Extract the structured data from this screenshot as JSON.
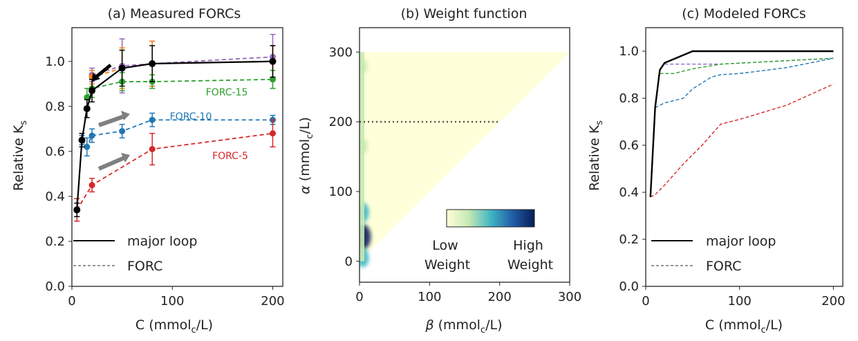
{
  "chart_data": [
    {
      "type": "line",
      "title": "(a) Measured FORCs",
      "xlabel": "C (mmol$_c$/L)",
      "ylabel": "Relative K$_s$",
      "xlim": [
        0,
        210
      ],
      "ylim": [
        0.0,
        1.15
      ],
      "xticks": [
        0,
        100,
        200
      ],
      "yticks": [
        0.0,
        0.2,
        0.4,
        0.6,
        0.8,
        1.0
      ],
      "grid": false,
      "legend_position": "lower-left",
      "series": [
        {
          "name": "major loop",
          "style": "solid",
          "color": "#000000",
          "marker": "circle",
          "x": [
            5,
            10,
            15,
            20,
            50,
            80,
            200
          ],
          "y": [
            0.34,
            0.65,
            0.79,
            0.87,
            0.97,
            0.99,
            1.0
          ],
          "err": [
            0.03,
            0.03,
            0.04,
            0.05,
            0.08,
            0.08,
            0.07
          ]
        },
        {
          "name": "",
          "style": "dashed",
          "color": "#9467bd",
          "marker": "circle",
          "x": [
            20,
            50,
            80,
            200
          ],
          "y": [
            0.94,
            0.98,
            0.99,
            1.02
          ],
          "err": [
            0.03,
            0.12,
            0.1,
            0.1
          ]
        },
        {
          "name": "",
          "style": "dashed",
          "color": "#ff7f0e",
          "marker": "circle",
          "x": [
            20,
            50,
            80,
            200
          ],
          "y": [
            0.93,
            0.97,
            0.99,
            1.0
          ],
          "err": [
            0.03,
            0.09,
            0.1,
            0.07
          ]
        },
        {
          "name": "FORC-15",
          "style": "dashed",
          "color": "#2ca02c",
          "marker": "circle",
          "x": [
            15,
            20,
            50,
            80,
            200
          ],
          "y": [
            0.84,
            0.88,
            0.91,
            0.91,
            0.92
          ],
          "err": [
            0.04,
            0.04,
            0.04,
            0.03,
            0.04
          ]
        },
        {
          "name": "FORC-10",
          "style": "dashed",
          "color": "#1f77b4",
          "marker": "circle",
          "x": [
            10,
            15,
            20,
            50,
            80,
            200
          ],
          "y": [
            0.65,
            0.62,
            0.67,
            0.69,
            0.74,
            0.74
          ],
          "err": [
            0.02,
            0.04,
            0.03,
            0.03,
            0.03,
            0.02
          ]
        },
        {
          "name": "FORC-5",
          "style": "dashed",
          "color": "#d62728",
          "marker": "circle",
          "x": [
            5,
            20,
            80,
            200
          ],
          "y": [
            0.34,
            0.45,
            0.61,
            0.68
          ],
          "err": [
            0.05,
            0.03,
            0.07,
            0.06
          ]
        }
      ],
      "legend": [
        {
          "label": "major loop",
          "style": "solid"
        },
        {
          "label": "FORC",
          "style": "dashed"
        }
      ],
      "annotations": [
        "FORC-15",
        "FORC-10",
        "FORC-5"
      ]
    },
    {
      "type": "heatmap",
      "title": "(b) Weight function",
      "xlabel": "β (mmol$_c$/L)",
      "ylabel": "α (mmol$_c$/L)",
      "xlim": [
        0,
        300
      ],
      "ylim": [
        -30,
        335
      ],
      "xticks": [
        0,
        100,
        200,
        300
      ],
      "yticks": [
        0,
        100,
        200,
        300
      ],
      "domain": "triangle: 0 ≤ β ≤ α ≤ 300",
      "dotted_line": {
        "alpha": 200,
        "beta_range": [
          0,
          200
        ]
      },
      "colormap": [
        "#ffffd9",
        "#c7e9b4",
        "#41b6c4",
        "#225ea8",
        "#081d58"
      ],
      "colorbar": {
        "low_label": "Low\nWeight",
        "high_label": "High\nWeight"
      },
      "hotspots": [
        {
          "beta": 3,
          "alpha": 35,
          "level": 1.0
        },
        {
          "beta": 3,
          "alpha": 70,
          "level": 0.6
        },
        {
          "beta": 3,
          "alpha": 5,
          "level": 0.55
        },
        {
          "beta": 3,
          "alpha": 165,
          "level": 0.3
        },
        {
          "beta": 3,
          "alpha": 280,
          "level": 0.25
        }
      ]
    },
    {
      "type": "line",
      "title": "(c) Modeled FORCs",
      "xlabel": "C (mmol$_c$/L)",
      "ylabel": "Relative K$_s$",
      "xlim": [
        0,
        210
      ],
      "ylim": [
        0.0,
        1.1
      ],
      "xticks": [
        0,
        100,
        200
      ],
      "yticks": [
        0.0,
        0.2,
        0.4,
        0.6,
        0.8,
        1.0
      ],
      "grid": false,
      "legend_position": "lower-left",
      "series": [
        {
          "name": "major loop",
          "style": "solid",
          "color": "#000000",
          "x": [
            5,
            10,
            15,
            20,
            50,
            80,
            200
          ],
          "y": [
            0.38,
            0.76,
            0.92,
            0.95,
            1.0,
            1.0,
            1.0
          ]
        },
        {
          "name": "",
          "style": "dashed",
          "color": "#ff7f0e",
          "x": [
            50,
            200
          ],
          "y": [
            1.0,
            1.0
          ]
        },
        {
          "name": "",
          "style": "dashed",
          "color": "#9467bd",
          "x": [
            20,
            80,
            200
          ],
          "y": [
            0.945,
            0.945,
            0.97
          ]
        },
        {
          "name": "",
          "style": "dashed",
          "color": "#2ca02c",
          "x": [
            15,
            30,
            50,
            80,
            200
          ],
          "y": [
            0.905,
            0.905,
            0.925,
            0.945,
            0.97
          ]
        },
        {
          "name": "",
          "style": "dashed",
          "color": "#1f77b4",
          "x": [
            10,
            20,
            40,
            50,
            70,
            80,
            100,
            150,
            200
          ],
          "y": [
            0.76,
            0.78,
            0.8,
            0.84,
            0.89,
            0.9,
            0.905,
            0.93,
            0.97
          ]
        },
        {
          "name": "",
          "style": "dashed",
          "color": "#d62728",
          "x": [
            5,
            10,
            20,
            40,
            60,
            80,
            100,
            150,
            200
          ],
          "y": [
            0.38,
            0.39,
            0.43,
            0.52,
            0.6,
            0.69,
            0.71,
            0.77,
            0.86
          ]
        }
      ],
      "legend": [
        {
          "label": "major loop",
          "style": "solid"
        },
        {
          "label": "FORC",
          "style": "dashed"
        }
      ]
    }
  ]
}
